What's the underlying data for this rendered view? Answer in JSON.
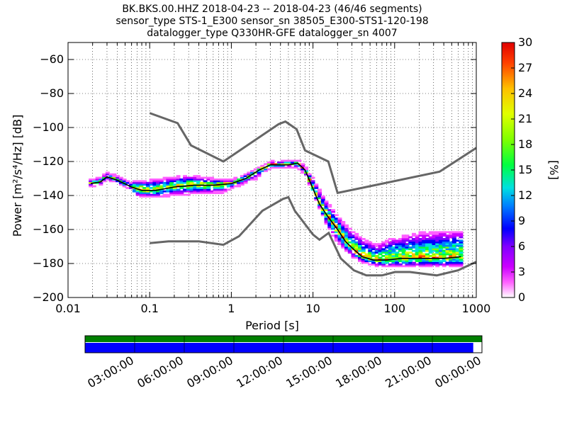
{
  "title": {
    "line1": "BK.BKS.00.HHZ   2018-04-23 -- 2018-04-23  (46/46 segments)",
    "line2": "sensor_type STS-1_E300 sensor_sn 38505_E300-STS1-120-198",
    "line3": "datalogger_type Q330HR-GFE datalogger_sn 4007"
  },
  "colorbar": {
    "label": "[%]",
    "ticks": [
      "0",
      "3",
      "6",
      "9",
      "12",
      "15",
      "18",
      "21",
      "24",
      "27",
      "30"
    ],
    "range": [
      0,
      30
    ]
  },
  "chart_data": {
    "type": "heatmap",
    "xlabel": "Period [s]",
    "ylabel": "Power [m²/s⁴/Hz] [dB]",
    "xscale": "log",
    "xlim": [
      0.01,
      1000
    ],
    "ylim": [
      -200,
      -50
    ],
    "xticks": [
      {
        "v": 0.01,
        "label": "0.01"
      },
      {
        "v": 0.1,
        "label": "0.1"
      },
      {
        "v": 1,
        "label": "1"
      },
      {
        "v": 10,
        "label": "10"
      },
      {
        "v": 100,
        "label": "100"
      },
      {
        "v": 1000,
        "label": "1000"
      }
    ],
    "yticks": [
      {
        "v": -60,
        "label": "−60"
      },
      {
        "v": -80,
        "label": "−80"
      },
      {
        "v": -100,
        "label": "−100"
      },
      {
        "v": -120,
        "label": "−120"
      },
      {
        "v": -140,
        "label": "−140"
      },
      {
        "v": -160,
        "label": "−160"
      },
      {
        "v": -180,
        "label": "−180"
      },
      {
        "v": -200,
        "label": "−200"
      }
    ],
    "grid": true,
    "nhnm": [
      [
        0.1,
        -168
      ],
      [
        0.17,
        -167
      ],
      [
        0.4,
        -167
      ],
      [
        0.8,
        -169
      ],
      [
        1.24,
        -164
      ],
      [
        2.4,
        -149
      ],
      [
        4.3,
        -142
      ],
      [
        5.0,
        -141
      ],
      [
        6.0,
        -149
      ],
      [
        10,
        -163
      ],
      [
        12,
        -166
      ],
      [
        15.6,
        -162
      ],
      [
        21.9,
        -177
      ],
      [
        31.6,
        -184
      ],
      [
        45,
        -187
      ],
      [
        70,
        -187
      ],
      [
        101,
        -185
      ],
      [
        154,
        -185
      ],
      [
        328,
        -187
      ],
      [
        600,
        -184
      ],
      [
        1000,
        -179
      ]
    ],
    "nlnm": [
      [
        0.1,
        -91.5
      ],
      [
        0.22,
        -97.4
      ],
      [
        0.32,
        -110.5
      ],
      [
        0.8,
        -120
      ],
      [
        3.8,
        -98
      ],
      [
        4.6,
        -96.5
      ],
      [
        6.3,
        -101
      ],
      [
        8,
        -113.5
      ],
      [
        15.4,
        -120
      ],
      [
        20,
        -138.5
      ],
      [
        354.8,
        -126
      ],
      [
        1000,
        -112
      ]
    ],
    "mode_curve": [
      [
        0.019,
        -133
      ],
      [
        0.025,
        -132
      ],
      [
        0.03,
        -129
      ],
      [
        0.04,
        -131
      ],
      [
        0.06,
        -135
      ],
      [
        0.08,
        -137
      ],
      [
        0.12,
        -137
      ],
      [
        0.2,
        -135
      ],
      [
        0.35,
        -134
      ],
      [
        0.6,
        -134
      ],
      [
        1.0,
        -133
      ],
      [
        1.5,
        -130
      ],
      [
        2.2,
        -125
      ],
      [
        3.0,
        -122
      ],
      [
        5.0,
        -122
      ],
      [
        6.5,
        -121
      ],
      [
        8,
        -125
      ],
      [
        10,
        -136
      ],
      [
        12,
        -145
      ],
      [
        15,
        -152
      ],
      [
        20,
        -160
      ],
      [
        25,
        -167
      ],
      [
        32,
        -172
      ],
      [
        40,
        -176
      ],
      [
        55,
        -178
      ],
      [
        80,
        -178
      ],
      [
        120,
        -177
      ],
      [
        200,
        -177
      ],
      [
        400,
        -177
      ],
      [
        650,
        -176
      ]
    ],
    "max_curve": [
      [
        0.1,
        -132
      ],
      [
        0.3,
        -129
      ],
      [
        0.6,
        -131
      ],
      [
        1.0,
        -132
      ],
      [
        2.0,
        -126
      ],
      [
        3.0,
        -121
      ],
      [
        5.0,
        -120
      ],
      [
        8,
        -124
      ],
      [
        10,
        -131
      ],
      [
        14,
        -143
      ],
      [
        20,
        -153
      ],
      [
        30,
        -162
      ],
      [
        40,
        -166
      ],
      [
        60,
        -170
      ],
      [
        100,
        -166
      ],
      [
        200,
        -163
      ],
      [
        400,
        -162
      ],
      [
        650,
        -162
      ]
    ],
    "min_curve": [
      [
        0.06,
        -140
      ],
      [
        0.1,
        -141
      ],
      [
        0.3,
        -139
      ],
      [
        0.8,
        -138
      ],
      [
        1.0,
        -136
      ],
      [
        2.0,
        -130
      ],
      [
        3.0,
        -124
      ],
      [
        6.0,
        -123
      ],
      [
        8,
        -127
      ],
      [
        10,
        -138
      ],
      [
        15,
        -158
      ],
      [
        20,
        -167
      ],
      [
        30,
        -176
      ],
      [
        45,
        -180
      ],
      [
        70,
        -182
      ],
      [
        120,
        -182
      ],
      [
        300,
        -182
      ],
      [
        650,
        -182
      ]
    ]
  },
  "timeline": {
    "labels": [
      "03:00:00",
      "06:00:00",
      "09:00:00",
      "12:00:00",
      "15:00:00",
      "18:00:00",
      "21:00:00",
      "00:00:00"
    ],
    "data_fraction": 0.978,
    "gap_color": "#008000",
    "data_color": "#0000ff"
  }
}
